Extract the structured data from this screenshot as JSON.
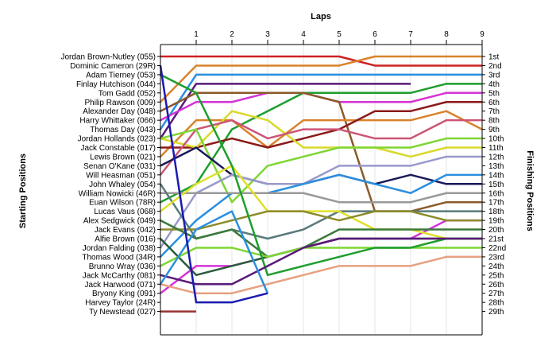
{
  "chart_data": {
    "type": "line",
    "title": "",
    "xlabel": "Laps",
    "ylabel_left": "Starting Positions",
    "ylabel_right": "Finishing Positions",
    "x_ticks": [
      "1",
      "2",
      "3",
      "4",
      "5",
      "6",
      "7",
      "8",
      "9"
    ],
    "xlim": [
      0,
      9
    ],
    "ylim": [
      1,
      29
    ],
    "grid": "vertical",
    "start_labels": [
      "Jordan Brown-Nutley (055)",
      "Dominic Cameron (29R)",
      "Adam Tierney (053)",
      "Finlay Hutchison (044)",
      "Tom Gadd (052)",
      "Philip Rawson (009)",
      "Alexander Day (048)",
      "Harry Whittaker (066)",
      "Thomas Day (043)",
      "Jordan Hollands (023)",
      "Jack Constable (017)",
      "Lewis Brown (021)",
      "Senan O'Kane (031)",
      "Will Heasman (051)",
      "John Whaley (054)",
      "William Nowicki (46R)",
      "Euan Wilson (78R)",
      "Lucas Vaus (068)",
      "Alex Sedgwick (049)",
      "Jack Evans (042)",
      "Alfie Brown (016)",
      "Jordan Falding (038)",
      "Thomas Wood (34R)",
      "Brunno Wray (036)",
      "Jack McCarthy (081)",
      "Jack Harwood (071)",
      "Bryony King (091)",
      "Harvey Taylor (24R)",
      "Ty Newstead (027)"
    ],
    "finish_labels": [
      "1st",
      "2nd",
      "3rd",
      "4th",
      "5th",
      "6th",
      "7th",
      "8th",
      "9th",
      "10th",
      "11th",
      "12th",
      "13th",
      "14th",
      "15th",
      "16th",
      "17th",
      "18th",
      "19th",
      "20th",
      "21st",
      "22nd",
      "23rd",
      "24th",
      "25th",
      "26th",
      "27th",
      "28th",
      "29th"
    ],
    "series": [
      {
        "color": "#cc2222",
        "values": [
          1,
          1,
          1,
          1,
          1,
          1,
          2,
          2,
          2,
          2
        ]
      },
      {
        "color": "#d9822b",
        "values": [
          6,
          2,
          2,
          2,
          2,
          2,
          1,
          1,
          1,
          1
        ]
      },
      {
        "color": "#2a8fe0",
        "values": [
          9,
          3,
          3,
          3,
          3,
          3,
          3,
          3,
          3,
          3
        ]
      },
      {
        "color": "#5a1a7a",
        "values": [
          10,
          4,
          4,
          4,
          4,
          4,
          4,
          4
        ]
      },
      {
        "color": "#1e9e2e",
        "values": [
          17,
          15,
          9,
          7,
          5,
          5,
          5,
          5,
          4,
          4
        ]
      },
      {
        "color": "#d633d6",
        "values": [
          8,
          6,
          6,
          5,
          5,
          6,
          6,
          6,
          5,
          5
        ]
      },
      {
        "color": "#8a5a2a",
        "values": [
          7,
          5,
          5,
          5,
          5,
          6,
          18,
          18,
          17,
          17
        ]
      },
      {
        "color": "#d9822b",
        "values": [
          12,
          8,
          8,
          11,
          8,
          8,
          8,
          8,
          7,
          9
        ]
      },
      {
        "color": "#8b1a1a",
        "values": [
          11,
          11,
          10,
          11,
          10,
          9,
          7,
          7,
          6,
          6
        ]
      },
      {
        "color": "#d9d92b",
        "values": [
          10,
          11,
          7,
          8,
          11,
          11,
          11,
          12,
          11,
          11
        ]
      },
      {
        "color": "#cc5577",
        "values": [
          14,
          9,
          8,
          10,
          9,
          9,
          10,
          10,
          8,
          8
        ]
      },
      {
        "color": "#7fd633",
        "values": [
          10,
          9,
          17,
          13,
          12,
          11,
          11,
          11,
          10,
          10
        ]
      },
      {
        "color": "#1a1a5a",
        "values": [
          13,
          11,
          14,
          15,
          15,
          14,
          15,
          14,
          15,
          15
        ]
      },
      {
        "color": "#9999cc",
        "values": [
          22,
          16,
          14,
          15,
          15,
          13,
          13,
          13,
          12,
          12
        ]
      },
      {
        "color": "#2a8fe0",
        "values": [
          23,
          19,
          16,
          16,
          15,
          14,
          15,
          16,
          14,
          14
        ]
      },
      {
        "color": "#d633d6",
        "values": [
          27,
          24,
          24,
          23,
          22,
          21,
          21,
          21,
          19,
          19
        ]
      },
      {
        "color": "#999999",
        "values": [
          16,
          16,
          16,
          16,
          16,
          17,
          17,
          17,
          16,
          16
        ]
      },
      {
        "color": "#5a7a7a",
        "values": [
          15,
          21,
          20,
          21,
          20,
          18,
          18,
          18,
          18,
          18
        ]
      },
      {
        "color": "#e0e02b",
        "values": [
          18,
          15,
          13,
          18,
          18,
          18,
          20,
          20,
          21,
          21
        ]
      },
      {
        "color": "#8b8b2a",
        "values": [
          20,
          20,
          19,
          18,
          18,
          19,
          18,
          18,
          19,
          19
        ]
      },
      {
        "color": "#3a7a3a",
        "values": [
          19,
          21,
          20,
          23,
          22,
          20,
          20,
          20,
          20,
          20
        ]
      },
      {
        "color": "#2a5a3a",
        "values": [
          21,
          25,
          24,
          23,
          22,
          21,
          21,
          21,
          21,
          21
        ]
      },
      {
        "color": "#7fd633",
        "values": [
          24,
          22,
          22,
          23,
          22,
          22,
          22,
          22,
          22,
          22
        ]
      },
      {
        "color": "#1e9e2e",
        "values": [
          3,
          5,
          13,
          25,
          24,
          23,
          22,
          22,
          21,
          21
        ]
      },
      {
        "color": "#e8a080",
        "values": [
          26,
          27,
          27,
          26,
          25,
          24,
          24,
          24,
          23,
          23
        ]
      },
      {
        "color": "#5a1a7a",
        "values": [
          25,
          26,
          26,
          24,
          22,
          21,
          21,
          21,
          21,
          21
        ]
      },
      {
        "color": "#2a8fe0",
        "values": [
          26,
          20,
          18,
          27
        ]
      },
      {
        "color": "#1a1ab0",
        "values": [
          2,
          28,
          28,
          27
        ]
      },
      {
        "color": "#993333",
        "values": [
          29,
          29
        ]
      }
    ]
  }
}
